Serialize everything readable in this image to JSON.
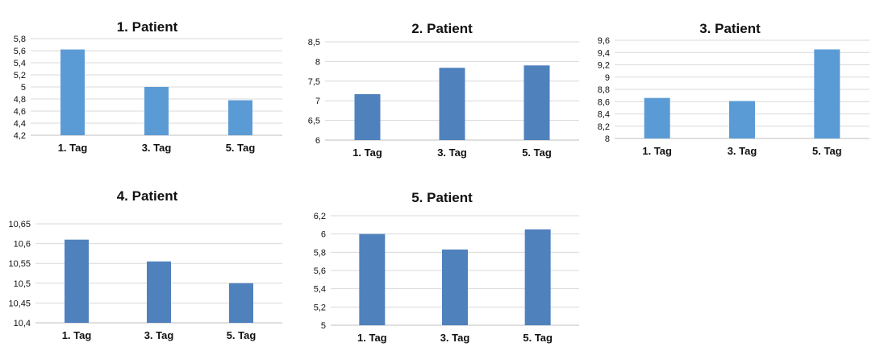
{
  "chart_data": [
    {
      "type": "bar",
      "title": "1. Patient",
      "categories": [
        "1. Tag",
        "3. Tag",
        "5. Tag"
      ],
      "values": [
        5.62,
        5.0,
        4.78
      ],
      "ylim": [
        4.2,
        5.8
      ],
      "yticks": [
        "4,2",
        "4,4",
        "4,6",
        "4,8",
        "5",
        "5,2",
        "5,4",
        "5,6",
        "5,8"
      ],
      "color": "#5b9bd5",
      "grid": true
    },
    {
      "type": "bar",
      "title": "2. Patient",
      "categories": [
        "1. Tag",
        "3. Tag",
        "5. Tag"
      ],
      "values": [
        7.17,
        7.84,
        7.9
      ],
      "ylim": [
        6,
        8.5
      ],
      "yticks": [
        "6",
        "6,5",
        "7",
        "7,5",
        "8",
        "8,5"
      ],
      "color": "#4f81bd",
      "grid": true
    },
    {
      "type": "bar",
      "title": "3. Patient",
      "categories": [
        "1. Tag",
        "3. Tag",
        "5. Tag"
      ],
      "values": [
        8.66,
        8.61,
        9.45
      ],
      "ylim": [
        8,
        9.6
      ],
      "yticks": [
        "8",
        "8,2",
        "8,4",
        "8,6",
        "8,8",
        "9",
        "9,2",
        "9,4",
        "9,6"
      ],
      "color": "#5b9bd5",
      "grid": true
    },
    {
      "type": "bar",
      "title": "4. Patient",
      "categories": [
        "1. Tag",
        "3. Tag",
        "5. Tag"
      ],
      "values": [
        10.61,
        10.555,
        10.5
      ],
      "ylim": [
        10.4,
        10.65
      ],
      "yticks": [
        "10,4",
        "10,45",
        "10,5",
        "10,55",
        "10,6",
        "10,65"
      ],
      "color": "#4f81bd",
      "grid": true
    },
    {
      "type": "bar",
      "title": "5. Patient",
      "categories": [
        "1. Tag",
        "3. Tag",
        "5. Tag"
      ],
      "values": [
        6.0,
        5.83,
        6.05
      ],
      "ylim": [
        5,
        6.2
      ],
      "yticks": [
        "5",
        "5,2",
        "5,4",
        "5,6",
        "5,8",
        "6",
        "6,2"
      ],
      "color": "#4f81bd",
      "grid": true
    }
  ]
}
